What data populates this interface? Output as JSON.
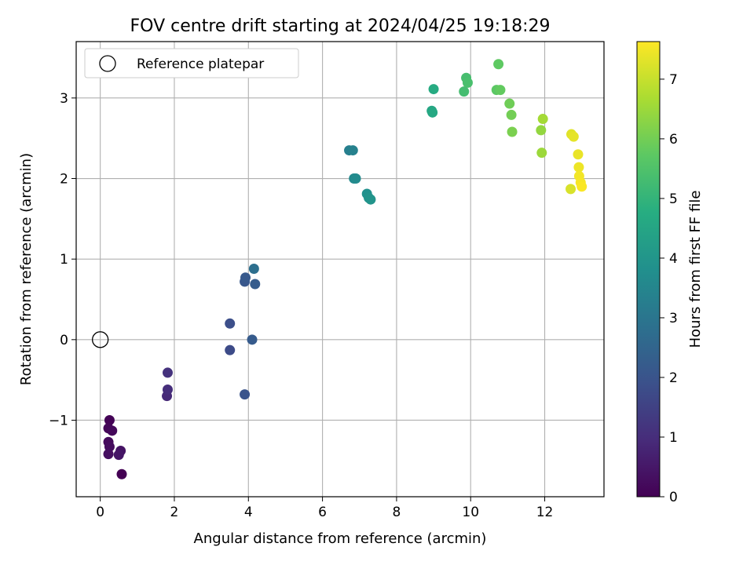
{
  "chart_data": {
    "type": "scatter",
    "title": "FOV centre drift starting at 2024/04/25 19:18:29",
    "xlabel": "Angular distance from reference (arcmin)",
    "ylabel": "Rotation from reference (arcmin)",
    "colorbar_label": "Hours from first FF file",
    "xlim": [
      -0.65,
      13.6
    ],
    "ylim": [
      -1.95,
      3.7
    ],
    "clim": [
      0,
      7.63
    ],
    "colormap": "viridis",
    "grid": true,
    "legend_position": "top-left",
    "x_ticks": [
      0,
      2,
      4,
      6,
      8,
      10,
      12
    ],
    "x_tick_labels": [
      "0",
      "2",
      "4",
      "6",
      "8",
      "10",
      "12"
    ],
    "y_ticks": [
      -1,
      0,
      1,
      2,
      3
    ],
    "y_tick_labels": [
      "−1",
      "0",
      "1",
      "2",
      "3"
    ],
    "colorbar_ticks": [
      0,
      1,
      2,
      3,
      4,
      5,
      6,
      7
    ],
    "colorbar_tick_labels": [
      "0",
      "1",
      "2",
      "3",
      "4",
      "5",
      "6",
      "7"
    ],
    "reference": {
      "label": "Reference platepar",
      "x": 0,
      "y": 0
    },
    "points": [
      {
        "x": 0.58,
        "y": -1.67,
        "t": 0.0
      },
      {
        "x": 0.25,
        "y": -1.0,
        "t": 0.05
      },
      {
        "x": 0.22,
        "y": -1.1,
        "t": 0.1
      },
      {
        "x": 0.32,
        "y": -1.13,
        "t": 0.15
      },
      {
        "x": 0.22,
        "y": -1.27,
        "t": 0.2
      },
      {
        "x": 0.25,
        "y": -1.33,
        "t": 0.25
      },
      {
        "x": 0.22,
        "y": -1.42,
        "t": 0.3
      },
      {
        "x": 0.55,
        "y": -1.38,
        "t": 0.4
      },
      {
        "x": 0.5,
        "y": -1.43,
        "t": 0.45
      },
      {
        "x": 1.8,
        "y": -0.7,
        "t": 0.9
      },
      {
        "x": 1.82,
        "y": -0.62,
        "t": 1.0
      },
      {
        "x": 1.82,
        "y": -0.41,
        "t": 1.1
      },
      {
        "x": 3.5,
        "y": -0.13,
        "t": 1.75
      },
      {
        "x": 3.5,
        "y": 0.2,
        "t": 1.85
      },
      {
        "x": 3.9,
        "y": -0.68,
        "t": 2.0
      },
      {
        "x": 3.9,
        "y": 0.72,
        "t": 2.1
      },
      {
        "x": 3.92,
        "y": 0.77,
        "t": 2.15
      },
      {
        "x": 4.1,
        "y": 0.0,
        "t": 2.2
      },
      {
        "x": 4.18,
        "y": 0.69,
        "t": 2.25
      },
      {
        "x": 4.15,
        "y": 0.88,
        "t": 2.8
      },
      {
        "x": 6.72,
        "y": 2.35,
        "t": 3.3
      },
      {
        "x": 6.82,
        "y": 2.35,
        "t": 3.35
      },
      {
        "x": 6.85,
        "y": 2.0,
        "t": 3.6
      },
      {
        "x": 6.9,
        "y": 2.0,
        "t": 3.65
      },
      {
        "x": 7.2,
        "y": 1.81,
        "t": 3.85
      },
      {
        "x": 7.25,
        "y": 1.76,
        "t": 3.9
      },
      {
        "x": 7.3,
        "y": 1.74,
        "t": 3.95
      },
      {
        "x": 8.95,
        "y": 2.84,
        "t": 4.55
      },
      {
        "x": 8.97,
        "y": 2.82,
        "t": 4.6
      },
      {
        "x": 9.0,
        "y": 3.11,
        "t": 4.7
      },
      {
        "x": 9.82,
        "y": 3.08,
        "t": 5.3
      },
      {
        "x": 9.88,
        "y": 3.25,
        "t": 5.35
      },
      {
        "x": 9.92,
        "y": 3.19,
        "t": 5.4
      },
      {
        "x": 10.7,
        "y": 3.1,
        "t": 5.7
      },
      {
        "x": 10.75,
        "y": 3.42,
        "t": 5.75
      },
      {
        "x": 10.8,
        "y": 3.1,
        "t": 5.8
      },
      {
        "x": 11.05,
        "y": 2.93,
        "t": 5.95
      },
      {
        "x": 11.1,
        "y": 2.79,
        "t": 6.0
      },
      {
        "x": 11.12,
        "y": 2.58,
        "t": 6.1
      },
      {
        "x": 11.9,
        "y": 2.6,
        "t": 6.4
      },
      {
        "x": 11.92,
        "y": 2.32,
        "t": 6.5
      },
      {
        "x": 11.95,
        "y": 2.74,
        "t": 6.6
      },
      {
        "x": 12.7,
        "y": 1.87,
        "t": 7.2
      },
      {
        "x": 12.72,
        "y": 2.55,
        "t": 7.3
      },
      {
        "x": 12.78,
        "y": 2.52,
        "t": 7.35
      },
      {
        "x": 12.9,
        "y": 2.3,
        "t": 7.4
      },
      {
        "x": 12.92,
        "y": 2.14,
        "t": 7.45
      },
      {
        "x": 12.93,
        "y": 2.03,
        "t": 7.5
      },
      {
        "x": 12.97,
        "y": 1.95,
        "t": 7.55
      },
      {
        "x": 13.0,
        "y": 1.9,
        "t": 7.6
      }
    ]
  }
}
